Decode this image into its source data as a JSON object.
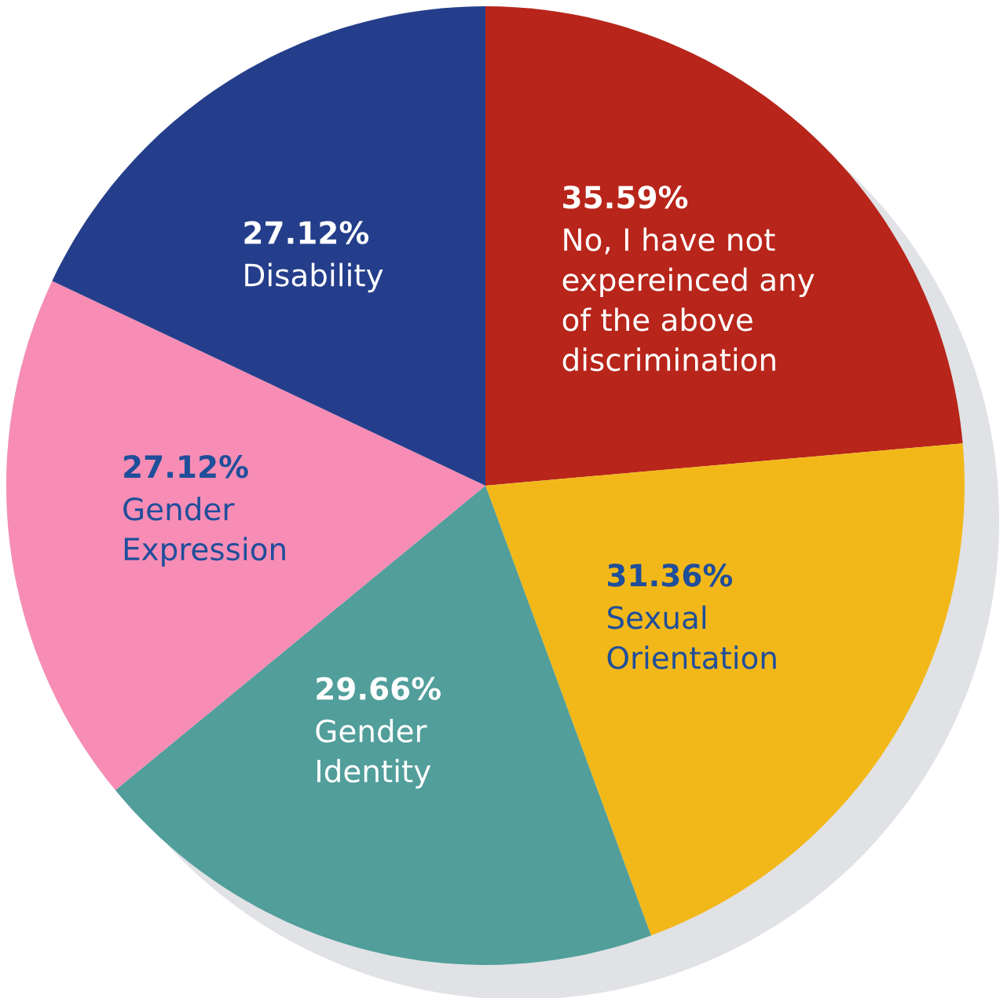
{
  "chart_data": {
    "type": "pie",
    "categories": [
      "No, I have not\nexpereinced any\nof the above\ndiscrimination",
      "Sexual\nOrientation",
      "Gender\nIdentity",
      "Gender\nExpression",
      "Disability"
    ],
    "values": [
      35.59,
      31.36,
      29.66,
      27.12,
      27.12
    ],
    "value_labels": [
      "35.59%",
      "31.36%",
      "29.66%",
      "27.12%",
      "27.12%"
    ],
    "colors": [
      "#b8251a",
      "#f2b81a",
      "#519e9b",
      "#f78db5",
      "#243e8b"
    ]
  }
}
